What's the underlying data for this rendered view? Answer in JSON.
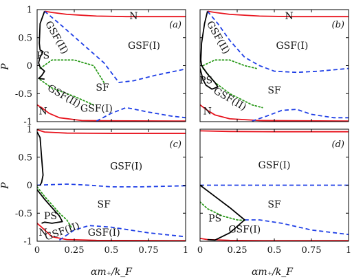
{
  "figure": {
    "xlabel": "αm₊/k_F",
    "ylabel": "P"
  },
  "colors": {
    "red": "#e8141e",
    "blue": "#1f3fe6",
    "green": "#2a9a1a",
    "black": "#000000"
  },
  "chart_data": [
    {
      "id": "a",
      "type": "line",
      "tag": "(a)",
      "xlim": [
        0,
        1
      ],
      "ylim": [
        -1,
        1
      ],
      "xticks": [
        0,
        0.25,
        0.5,
        0.75,
        1
      ],
      "xtick_labels": [
        "0",
        "0.25",
        "0.5",
        "0.75",
        "1"
      ],
      "yticks": [
        1,
        0.5,
        0,
        -0.5,
        -1
      ],
      "ytick_labels": [
        "1",
        "0.5",
        "0",
        "-0.5",
        "-1"
      ],
      "labels": [
        {
          "text": "N",
          "x": 0.65,
          "y": 0.88
        },
        {
          "text": "GSF(I)",
          "x": 0.72,
          "y": 0.35
        },
        {
          "text": "GSF(II)",
          "x": 0.13,
          "y": 0.5,
          "rotate": 60
        },
        {
          "text": "PS",
          "x": 0.04,
          "y": 0.17
        },
        {
          "text": "SF",
          "x": 0.44,
          "y": -0.4
        },
        {
          "text": "GSF(II)",
          "x": 0.18,
          "y": -0.55,
          "rotate": 30
        },
        {
          "text": "GSF(I)",
          "x": 0.4,
          "y": -0.77
        },
        {
          "text": "N",
          "x": 0.04,
          "y": -0.82
        }
      ],
      "series": [
        {
          "color": "red",
          "dash": "solid",
          "points": [
            [
              0.05,
              0.97
            ],
            [
              0.1,
              0.95
            ],
            [
              0.2,
              0.915
            ],
            [
              0.4,
              0.885
            ],
            [
              0.6,
              0.875
            ],
            [
              0.8,
              0.875
            ],
            [
              1,
              0.875
            ]
          ]
        },
        {
          "color": "red",
          "dash": "solid",
          "points": [
            [
              0,
              -0.7
            ],
            [
              0.03,
              -0.75
            ],
            [
              0.08,
              -0.85
            ],
            [
              0.15,
              -0.93
            ],
            [
              0.3,
              -0.98
            ],
            [
              0.5,
              -0.985
            ],
            [
              1,
              -0.99
            ]
          ]
        },
        {
          "color": "blue",
          "dash": "dash",
          "points": [
            [
              0.05,
              0.97
            ],
            [
              0.15,
              0.75
            ],
            [
              0.3,
              0.4
            ],
            [
              0.45,
              0.05
            ],
            [
              0.55,
              -0.3
            ],
            [
              0.65,
              -0.27
            ],
            [
              0.8,
              -0.17
            ],
            [
              1,
              -0.06
            ]
          ]
        },
        {
          "color": "blue",
          "dash": "dash",
          "points": [
            [
              0.4,
              -0.99
            ],
            [
              0.5,
              -0.85
            ],
            [
              0.6,
              -0.75
            ],
            [
              0.75,
              -0.83
            ],
            [
              0.9,
              -0.9
            ],
            [
              1,
              -0.93
            ]
          ]
        },
        {
          "color": "green",
          "dash": "dot",
          "points": [
            [
              0.02,
              -0.05
            ],
            [
              0.1,
              0.1
            ],
            [
              0.25,
              0.1
            ],
            [
              0.38,
              0.0
            ],
            [
              0.45,
              -0.3
            ]
          ]
        },
        {
          "color": "green",
          "dash": "dot",
          "points": [
            [
              0.02,
              -0.25
            ],
            [
              0.1,
              -0.4
            ],
            [
              0.25,
              -0.55
            ],
            [
              0.38,
              -0.7
            ]
          ]
        },
        {
          "color": "black",
          "dash": "solid",
          "points": [
            [
              0.05,
              0.97
            ],
            [
              0.02,
              0.75
            ],
            [
              0.015,
              0.4
            ],
            [
              0.02,
              0.28
            ],
            [
              0.04,
              0.25
            ],
            [
              0.02,
              0.15
            ],
            [
              0.01,
              0.05
            ],
            [
              0.02,
              -0.03
            ],
            [
              0.05,
              -0.1
            ],
            [
              0.03,
              -0.18
            ],
            [
              0.01,
              -0.23
            ],
            [
              0.05,
              -0.24
            ]
          ]
        }
      ]
    },
    {
      "id": "b",
      "type": "line",
      "tag": "(b)",
      "xlim": [
        0,
        1
      ],
      "ylim": [
        -1,
        1
      ],
      "xticks": [
        0,
        0.25,
        0.5,
        0.75,
        1
      ],
      "xtick_labels": [
        "0",
        "0.25",
        "0.5",
        "0.75",
        "1"
      ],
      "yticks": [
        1,
        0.5,
        0,
        -0.5,
        -1
      ],
      "ytick_labels": [
        "1",
        "0.5",
        "0",
        "-0.5",
        "-1"
      ],
      "labels": [
        {
          "text": "N",
          "x": 0.6,
          "y": 0.88
        },
        {
          "text": "GSF(I)",
          "x": 0.62,
          "y": 0.35
        },
        {
          "text": "GSF(II)",
          "x": 0.12,
          "y": 0.5,
          "rotate": 60
        },
        {
          "text": "PS",
          "x": 0.04,
          "y": -0.27
        },
        {
          "text": "SF",
          "x": 0.5,
          "y": -0.45
        },
        {
          "text": "GSF(II)",
          "x": 0.2,
          "y": -0.6,
          "rotate": 30
        },
        {
          "text": "N",
          "x": 0.05,
          "y": -0.82
        }
      ],
      "series": [
        {
          "color": "red",
          "dash": "solid",
          "points": [
            [
              0.05,
              0.97
            ],
            [
              0.1,
              0.95
            ],
            [
              0.2,
              0.915
            ],
            [
              0.4,
              0.885
            ],
            [
              0.6,
              0.875
            ],
            [
              0.8,
              0.875
            ],
            [
              1,
              0.875
            ]
          ]
        },
        {
          "color": "red",
          "dash": "solid",
          "points": [
            [
              0,
              -0.7
            ],
            [
              0.05,
              -0.8
            ],
            [
              0.1,
              -0.88
            ],
            [
              0.2,
              -0.95
            ],
            [
              0.4,
              -0.98
            ],
            [
              0.7,
              -0.985
            ],
            [
              1,
              -0.99
            ]
          ]
        },
        {
          "color": "blue",
          "dash": "dash",
          "points": [
            [
              0.05,
              0.97
            ],
            [
              0.12,
              0.75
            ],
            [
              0.2,
              0.45
            ],
            [
              0.3,
              0.15
            ],
            [
              0.4,
              0.0
            ],
            [
              0.5,
              -0.1
            ],
            [
              0.65,
              -0.12
            ],
            [
              0.8,
              -0.1
            ],
            [
              1,
              -0.05
            ]
          ]
        },
        {
          "color": "blue",
          "dash": "dash",
          "points": [
            [
              0.35,
              -0.99
            ],
            [
              0.45,
              -0.9
            ],
            [
              0.55,
              -0.8
            ],
            [
              0.65,
              -0.78
            ],
            [
              0.75,
              -0.87
            ],
            [
              0.9,
              -0.93
            ],
            [
              1,
              -0.93
            ]
          ]
        },
        {
          "color": "green",
          "dash": "dot",
          "points": [
            [
              0.02,
              0.0
            ],
            [
              0.1,
              0.1
            ],
            [
              0.2,
              0.1
            ],
            [
              0.3,
              0.0
            ],
            [
              0.38,
              -0.05
            ]
          ]
        },
        {
          "color": "green",
          "dash": "dot",
          "points": [
            [
              0.02,
              -0.05
            ],
            [
              0.1,
              -0.3
            ],
            [
              0.2,
              -0.5
            ],
            [
              0.35,
              -0.7
            ],
            [
              0.42,
              -0.75
            ]
          ]
        },
        {
          "color": "black",
          "dash": "solid",
          "points": [
            [
              0.05,
              0.97
            ],
            [
              0.03,
              0.75
            ],
            [
              0.01,
              0.4
            ],
            [
              0.005,
              0.1
            ],
            [
              0.01,
              0.0
            ],
            [
              0.05,
              -0.15
            ],
            [
              0.1,
              -0.3
            ],
            [
              0.12,
              -0.38
            ],
            [
              0.08,
              -0.42
            ],
            [
              0.04,
              -0.35
            ],
            [
              0.02,
              -0.25
            ],
            [
              0.0,
              -0.05
            ]
          ]
        }
      ]
    },
    {
      "id": "c",
      "type": "line",
      "tag": "(c)",
      "xlim": [
        0,
        1
      ],
      "ylim": [
        -1,
        1
      ],
      "xticks": [
        0,
        0.25,
        0.5,
        0.75,
        1
      ],
      "xtick_labels": [
        "0",
        "0.25",
        "0.5",
        "0.75",
        "1"
      ],
      "yticks": [
        1,
        0.5,
        0,
        -0.5,
        -1
      ],
      "ytick_labels": [
        "1",
        "0.5",
        "0",
        "-0.5",
        "-1"
      ],
      "labels": [
        {
          "text": "GSF(I)",
          "x": 0.6,
          "y": 0.33
        },
        {
          "text": "SF",
          "x": 0.45,
          "y": -0.35
        },
        {
          "text": "PS",
          "x": 0.09,
          "y": -0.56
        },
        {
          "text": "GSF(II)",
          "x": 0.17,
          "y": -0.83,
          "rotate": -20
        },
        {
          "text": "GSF(I)",
          "x": 0.45,
          "y": -0.85
        },
        {
          "text": "N",
          "x": 0.04,
          "y": -0.85
        }
      ],
      "series": [
        {
          "color": "red",
          "dash": "solid",
          "points": [
            [
              0,
              0.99
            ],
            [
              0.05,
              0.95
            ],
            [
              0.2,
              0.93
            ],
            [
              0.5,
              0.925
            ],
            [
              1,
              0.925
            ]
          ]
        },
        {
          "color": "red",
          "dash": "solid",
          "points": [
            [
              0,
              -0.68
            ],
            [
              0.03,
              -0.75
            ],
            [
              0.1,
              -0.92
            ],
            [
              0.2,
              -0.97
            ],
            [
              0.4,
              -0.985
            ],
            [
              1,
              -0.99
            ]
          ]
        },
        {
          "color": "blue",
          "dash": "dash",
          "points": [
            [
              0,
              0.0
            ],
            [
              0.1,
              0.01
            ],
            [
              0.2,
              0.02
            ],
            [
              0.35,
              0.0
            ],
            [
              0.5,
              -0.03
            ],
            [
              0.7,
              -0.03
            ],
            [
              1,
              -0.01
            ]
          ]
        },
        {
          "color": "blue",
          "dash": "dash",
          "points": [
            [
              0.15,
              -0.98
            ],
            [
              0.25,
              -0.8
            ],
            [
              0.35,
              -0.72
            ],
            [
              0.5,
              -0.75
            ],
            [
              0.75,
              -0.85
            ],
            [
              1,
              -0.92
            ]
          ]
        },
        {
          "color": "green",
          "dash": "dot",
          "points": [
            [
              0,
              -0.03
            ],
            [
              0.05,
              -0.2
            ],
            [
              0.1,
              -0.35
            ],
            [
              0.15,
              -0.5
            ],
            [
              0.2,
              -0.62
            ],
            [
              0.23,
              -0.75
            ]
          ]
        },
        {
          "color": "black",
          "dash": "solid",
          "points": [
            [
              0,
              0.95
            ],
            [
              0.02,
              0.85
            ],
            [
              0.03,
              0.5
            ],
            [
              0.04,
              0.18
            ],
            [
              0.03,
              0.05
            ],
            [
              0.02,
              0.0
            ]
          ]
        },
        {
          "color": "black",
          "dash": "solid",
          "points": [
            [
              0,
              -0.08
            ],
            [
              0.05,
              -0.25
            ],
            [
              0.1,
              -0.4
            ],
            [
              0.15,
              -0.55
            ],
            [
              0.17,
              -0.65
            ],
            [
              0.1,
              -0.68
            ],
            [
              0.05,
              -0.66
            ],
            [
              0.03,
              -0.68
            ]
          ]
        }
      ]
    },
    {
      "id": "d",
      "type": "line",
      "tag": "(d)",
      "xlim": [
        0,
        1
      ],
      "ylim": [
        -1,
        1
      ],
      "xticks": [
        0,
        0.25,
        0.5,
        0.75,
        1
      ],
      "xtick_labels": [
        "0",
        "0.25",
        "0.5",
        "0.75",
        "1"
      ],
      "yticks": [
        1,
        0.5,
        0,
        -0.5,
        -1
      ],
      "ytick_labels": [
        "1",
        "0.5",
        "0",
        "-0.5",
        "-1"
      ],
      "labels": [
        {
          "text": "GSF(I)",
          "x": 0.5,
          "y": 0.35
        },
        {
          "text": "SF",
          "x": 0.5,
          "y": -0.35
        },
        {
          "text": "PS",
          "x": 0.1,
          "y": -0.6
        },
        {
          "text": "GSF(I)",
          "x": 0.3,
          "y": -0.8
        }
      ],
      "series": [
        {
          "color": "red",
          "dash": "solid",
          "points": [
            [
              0,
              0.97
            ],
            [
              0.2,
              0.96
            ],
            [
              0.5,
              0.955
            ],
            [
              1,
              0.955
            ]
          ]
        },
        {
          "color": "red",
          "dash": "solid",
          "points": [
            [
              0,
              -0.95
            ],
            [
              0.05,
              -0.97
            ],
            [
              0.2,
              -0.985
            ],
            [
              0.5,
              -0.99
            ],
            [
              1,
              -0.99
            ]
          ]
        },
        {
          "color": "blue",
          "dash": "dash",
          "points": [
            [
              0,
              0.0
            ],
            [
              0.3,
              0.0
            ],
            [
              0.6,
              0.0
            ],
            [
              1,
              0.0
            ]
          ]
        },
        {
          "color": "blue",
          "dash": "dash",
          "points": [
            [
              0.3,
              -0.62
            ],
            [
              0.4,
              -0.62
            ],
            [
              0.55,
              -0.68
            ],
            [
              0.75,
              -0.8
            ],
            [
              1,
              -0.88
            ]
          ]
        },
        {
          "color": "green",
          "dash": "dot",
          "points": [
            [
              0,
              -0.3
            ],
            [
              0.05,
              -0.42
            ],
            [
              0.15,
              -0.55
            ],
            [
              0.25,
              -0.62
            ],
            [
              0.3,
              -0.63
            ]
          ]
        },
        {
          "color": "black",
          "dash": "solid",
          "points": [
            [
              0,
              0.0
            ],
            [
              0.1,
              -0.2
            ],
            [
              0.2,
              -0.4
            ],
            [
              0.3,
              -0.62
            ],
            [
              0.2,
              -0.85
            ],
            [
              0.1,
              -0.98
            ],
            [
              0.05,
              -0.97
            ]
          ]
        }
      ]
    }
  ]
}
